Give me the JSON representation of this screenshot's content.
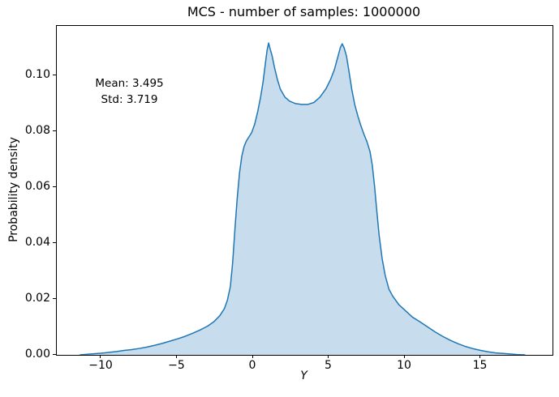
{
  "figure": {
    "title": "MCS - number of samples: 1000000",
    "xlabel": "Y",
    "ylabel": "Probability density"
  },
  "chart_data": {
    "type": "area",
    "subtype": "kde-density",
    "title": "MCS - number of samples: 1000000",
    "xlabel": "Y",
    "ylabel": "Probability density",
    "xlim": [
      -12.94,
      19.73
    ],
    "ylim": [
      0,
      0.1177
    ],
    "grid": false,
    "legend": "none",
    "x_ticks": {
      "values": [
        -10,
        -5,
        0,
        5,
        10,
        15
      ],
      "labels": [
        "−10",
        "−5",
        "0",
        "5",
        "10",
        "15"
      ]
    },
    "y_ticks": {
      "values": [
        0.0,
        0.02,
        0.04,
        0.06,
        0.08,
        0.1
      ],
      "labels": [
        "0.00",
        "0.02",
        "0.04",
        "0.06",
        "0.08",
        "0.10"
      ]
    },
    "annotation": {
      "lines": [
        "Mean: 3.495",
        "Std: 3.719"
      ],
      "x": -8.1,
      "y_top": 0.0997
    },
    "stats": {
      "mean": 3.495,
      "std": 3.719
    },
    "colors": {
      "line": "#1f77b4",
      "fill": "#c7dcec",
      "axes": "#000000"
    },
    "series": [
      {
        "name": "density",
        "x": [
          -11.4,
          -11.0,
          -10.5,
          -10.0,
          -9.5,
          -9.0,
          -8.5,
          -8.0,
          -7.5,
          -7.0,
          -6.5,
          -6.0,
          -5.5,
          -5.0,
          -4.5,
          -4.0,
          -3.5,
          -3.0,
          -2.6,
          -2.2,
          -1.9,
          -1.7,
          -1.5,
          -1.35,
          -1.2,
          -1.05,
          -0.9,
          -0.75,
          -0.6,
          -0.45,
          -0.3,
          -0.1,
          0.1,
          0.3,
          0.5,
          0.65,
          0.8,
          0.92,
          1.02,
          1.12,
          1.25,
          1.4,
          1.6,
          1.8,
          2.1,
          2.4,
          2.8,
          3.2,
          3.6,
          4.0,
          4.4,
          4.8,
          5.1,
          5.35,
          5.6,
          5.75,
          5.87,
          6.0,
          6.15,
          6.3,
          6.5,
          6.7,
          6.9,
          7.1,
          7.3,
          7.5,
          7.7,
          7.85,
          8.0,
          8.15,
          8.3,
          8.5,
          8.7,
          8.95,
          9.2,
          9.6,
          10.0,
          10.5,
          11.0,
          11.5,
          12.0,
          12.5,
          13.0,
          13.5,
          14.0,
          14.5,
          15.0,
          15.5,
          16.0,
          16.5,
          17.0,
          17.4,
          17.9
        ],
        "y": [
          0.0,
          0.0002,
          0.0004,
          0.0006,
          0.0009,
          0.0012,
          0.0016,
          0.0019,
          0.0023,
          0.0028,
          0.0034,
          0.0041,
          0.0049,
          0.0057,
          0.0066,
          0.0077,
          0.0089,
          0.0103,
          0.0118,
          0.014,
          0.0165,
          0.0195,
          0.0245,
          0.033,
          0.045,
          0.056,
          0.065,
          0.071,
          0.0745,
          0.0765,
          0.0778,
          0.0795,
          0.0825,
          0.087,
          0.0925,
          0.0975,
          0.104,
          0.109,
          0.1116,
          0.1095,
          0.107,
          0.103,
          0.0985,
          0.095,
          0.0922,
          0.0908,
          0.0899,
          0.0896,
          0.0896,
          0.0903,
          0.0922,
          0.0952,
          0.0985,
          0.102,
          0.107,
          0.11,
          0.1113,
          0.1098,
          0.107,
          0.102,
          0.095,
          0.0895,
          0.0855,
          0.082,
          0.079,
          0.0763,
          0.0728,
          0.068,
          0.0605,
          0.0515,
          0.043,
          0.0345,
          0.0285,
          0.0235,
          0.021,
          0.018,
          0.016,
          0.0135,
          0.0118,
          0.01,
          0.0082,
          0.0066,
          0.0052,
          0.004,
          0.003,
          0.0022,
          0.0016,
          0.0011,
          0.0007,
          0.0005,
          0.0003,
          0.0001,
          0.0
        ]
      }
    ]
  }
}
